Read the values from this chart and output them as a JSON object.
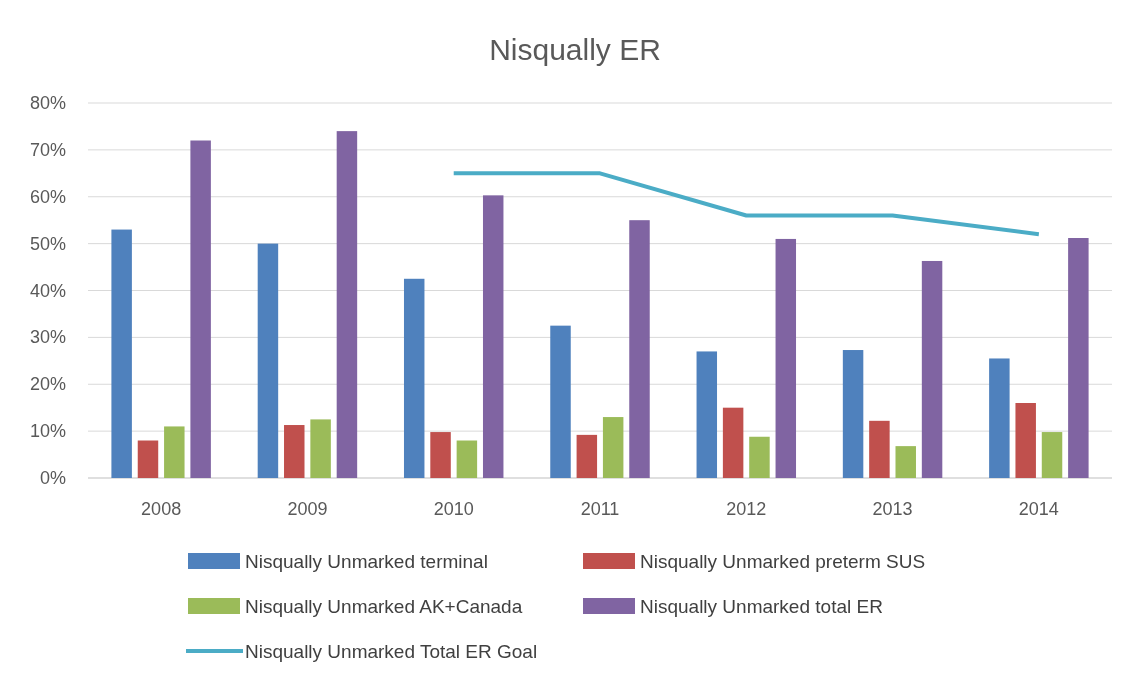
{
  "chart_data": {
    "type": "bar",
    "title": "Nisqually ER",
    "categories": [
      "2008",
      "2009",
      "2010",
      "2011",
      "2012",
      "2013",
      "2014"
    ],
    "series": [
      {
        "name": "Nisqually Unmarked terminal",
        "color": "#4f81bd",
        "values": [
          53,
          50,
          42.5,
          32.5,
          27,
          27.3,
          25.5
        ]
      },
      {
        "name": "Nisqually Unmarked preterm SUS",
        "color": "#c0504d",
        "values": [
          8,
          11.3,
          9.8,
          9.2,
          15,
          12.2,
          16
        ]
      },
      {
        "name": "Nisqually Unmarked AK+Canada",
        "color": "#9bbb59",
        "values": [
          11,
          12.5,
          8,
          13,
          8.8,
          6.8,
          9.8
        ]
      },
      {
        "name": "Nisqually Unmarked total ER",
        "color": "#8064a2",
        "values": [
          72,
          74,
          60.3,
          55,
          51,
          46.3,
          51.2
        ]
      },
      {
        "name": "Nisqually Unmarked Total ER Goal",
        "color": "#4bacc6",
        "type": "line",
        "values": [
          null,
          null,
          65,
          65,
          56,
          56,
          52
        ]
      }
    ],
    "ylim": [
      0,
      80
    ],
    "yticks": [
      {
        "value": 0,
        "label": "0%"
      },
      {
        "value": 10,
        "label": "10%"
      },
      {
        "value": 20,
        "label": "20%"
      },
      {
        "value": 30,
        "label": "30%"
      },
      {
        "value": 40,
        "label": "40%"
      },
      {
        "value": 50,
        "label": "50%"
      },
      {
        "value": 60,
        "label": "60%"
      },
      {
        "value": 70,
        "label": "70%"
      },
      {
        "value": 80,
        "label": "80%"
      }
    ],
    "grid": "y",
    "legend": "bottom",
    "marker": "none"
  }
}
